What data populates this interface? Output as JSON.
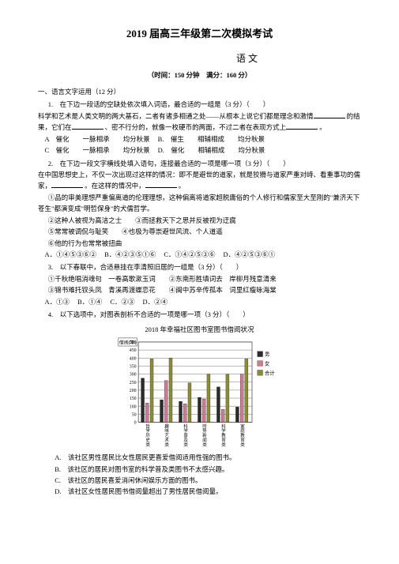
{
  "title": "2019 届高三年级第二次模拟考试",
  "subject": "语 文",
  "timing": "（时间：150 分钟　满分：160 分）",
  "section1": "一、语言文字运用（12 分）",
  "q1": {
    "stem": "1.　在下边一段话的空缺处依次填入词语，最合适的一组是（3 分）（　　）",
    "passage_a": "科学和艺术是人类文明的两大基石，二者有诸多相通之处——从根本上说它们都是理念和激情",
    "passage_b": "的结果，它们在",
    "passage_c": "、密不行分的，就像一枚硬币的两面，不过二者在表现方式上",
    "passage_d": "。",
    "opts": {
      "A": "A　催化　　一脉相承　　均分秋景",
      "B": "B.　催生　　相辅相成　　均分秋景",
      "C": "C　催化　　一脉相承　　均分秋景",
      "D": "D.　催化　　相辅相成　　均分秋景"
    }
  },
  "q2": {
    "stem": "2.　在下边一段文字横线处填入语句，连接最合适的一项是哪一项（3 分）（　　）",
    "passage_a": "在中国思想史上，不仅一次出现过这样的情况：即不是避世的道家，就是狡猾与道家严重对峙、看重事功的儒家，",
    "passage_b": "。在这样的情况中，",
    "passage_c": "。",
    "lines": {
      "l1": "①品的审美理想严重偏离道的伦理理想，这种偏离将道家超脱庸俗的个人修行和儒家至大至刚的\"兼济天下苍生\"都演变成\"明哲保身\"的犬儒哲学。",
      "l2": "②这种人被视为高洁之士　　③而拯救天下之思并反被视为迂腐",
      "l3": "⑤常常被调侃与耻笑　　④也极为尊崇避世风流、个人道遥",
      "l4": "⑥他的行为也常常被扭曲"
    },
    "opts": {
      "A": "A．①④⑤③⑥②",
      "B": "B．④②③⑤①⑥",
      "C": "C．①④②⑤③⑥",
      "D": "D．④②⑤③⑥①"
    }
  },
  "q3": {
    "stem": "3.　以下春联中，合适悬挂在李清照旧居的一组是（3 分）（　　）",
    "lines": {
      "l1": "①千秋绝唱消魂句　一卷高歌漱玉词　　②东南形胜填词去　岸柳月残意清来",
      "l2": "③锦书难托钗头凤　青溪再渡蝶恋花　　④闽中苏辛传孤本　词里红瘦咏海棠"
    },
    "opts": {
      "A": "A．①③",
      "B": "B．①④",
      "C": "C．②③",
      "D": "D．②④"
    }
  },
  "q4": {
    "stem": "4.　以下选项中，对图表剖析不合适的一项是哪一项（3 分）（　　）",
    "chart_title": "2018 年幸福社区图书室图书借阅状况",
    "opts": {
      "A": "A.　该社区男性居民比女性居民更喜爱借阅适用性强的图书。",
      "B": "B.　该社区的居民对图书室的科学普及类图书不太感兴趣。",
      "C": "C.　该社区的居民喜爱消闲休闲娱乐方面的图书。",
      "D": "D.　该社区女性居民图书借阅量超出了男性居民借阅量。"
    }
  },
  "chart": {
    "ylabel": "借阅(本)",
    "ymax": 500,
    "ytick_step": 50,
    "ymin": 0,
    "categories": [
      "哲学历史类",
      "趣味艺术类",
      "科学普及类",
      "时势新闻类",
      "科学教育类",
      "家庭教育类"
    ],
    "series": [
      {
        "name": "男",
        "color": "#2b2b2b",
        "values": [
          275,
          140,
          130,
          155,
          220,
          95
        ]
      },
      {
        "name": "女",
        "color": "#d07a8e",
        "values": [
          120,
          260,
          115,
          145,
          80,
          300
        ]
      },
      {
        "name": "合计",
        "color": "#8a8a3a",
        "values": [
          395,
          400,
          245,
          300,
          300,
          395
        ]
      }
    ],
    "legend_pos": "right",
    "bg": "#ffffff",
    "grid": "#333333",
    "bar_gap": 2,
    "group_gap": 8,
    "font_size": 7
  }
}
